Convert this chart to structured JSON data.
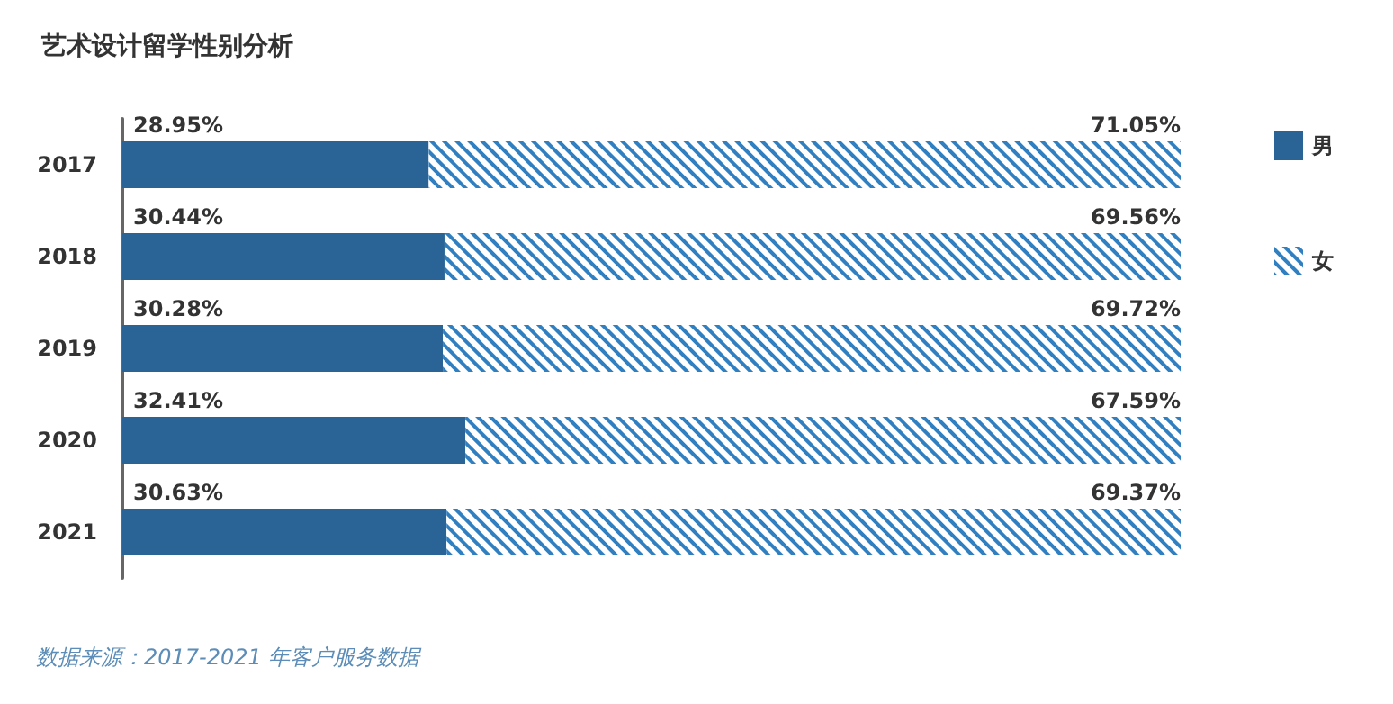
{
  "chart_data": {
    "type": "bar",
    "orientation": "horizontal",
    "stacked": true,
    "title": "艺术设计留学性别分析",
    "categories": [
      "2017",
      "2018",
      "2019",
      "2020",
      "2021"
    ],
    "series": [
      {
        "name": "男",
        "color": "#2a6496",
        "values": [
          28.95,
          30.44,
          30.28,
          32.41,
          30.63
        ],
        "value_labels": [
          "28.95%",
          "30.44%",
          "30.28%",
          "32.41%",
          "30.63%"
        ]
      },
      {
        "name": "女",
        "color": "#2f7fc1",
        "values": [
          71.05,
          69.56,
          69.72,
          67.59,
          69.37
        ],
        "value_labels": [
          "71.05%",
          "69.56%",
          "69.72%",
          "67.59%",
          "69.37%"
        ]
      }
    ],
    "legend": "top right",
    "annotations": [
      "数据来源：2017-2021 年客户服务数据"
    ]
  }
}
